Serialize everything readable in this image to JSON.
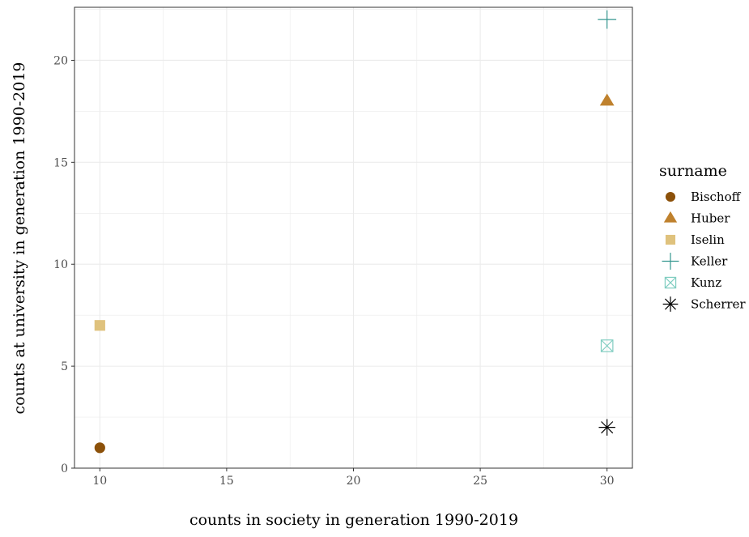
{
  "chart_data": {
    "type": "scatter",
    "xlabel": "counts in society in generation 1990-2019",
    "ylabel": "counts at university in generation 1990-2019",
    "xlim": [
      9,
      31
    ],
    "ylim": [
      0,
      22.6
    ],
    "x_ticks": [
      10,
      15,
      20,
      25,
      30
    ],
    "y_ticks": [
      0,
      5,
      10,
      15,
      20
    ],
    "x_tick_labels": [
      "10",
      "15",
      "20",
      "25",
      "30"
    ],
    "y_tick_labels": [
      "0",
      "5",
      "10",
      "15",
      "20"
    ],
    "grid": true,
    "legend_title": "surname",
    "legend_position": "right",
    "series": [
      {
        "name": "Bischoff",
        "shape": "circle",
        "color": "#8c510a",
        "points": [
          {
            "x": 10,
            "y": 1
          }
        ]
      },
      {
        "name": "Huber",
        "shape": "triangle",
        "color": "#bf812d",
        "points": [
          {
            "x": 30,
            "y": 18
          }
        ]
      },
      {
        "name": "Iselin",
        "shape": "square",
        "color": "#dfc27d",
        "points": [
          {
            "x": 10,
            "y": 7
          }
        ]
      },
      {
        "name": "Keller",
        "shape": "plus",
        "color": "#35978f",
        "points": [
          {
            "x": 30,
            "y": 22
          }
        ]
      },
      {
        "name": "Kunz",
        "shape": "square-cross",
        "color": "#80cdc1",
        "points": [
          {
            "x": 30,
            "y": 6
          }
        ]
      },
      {
        "name": "Scherrer",
        "shape": "asterisk",
        "color": "#000000",
        "points": [
          {
            "x": 30,
            "y": 2
          }
        ]
      }
    ]
  }
}
